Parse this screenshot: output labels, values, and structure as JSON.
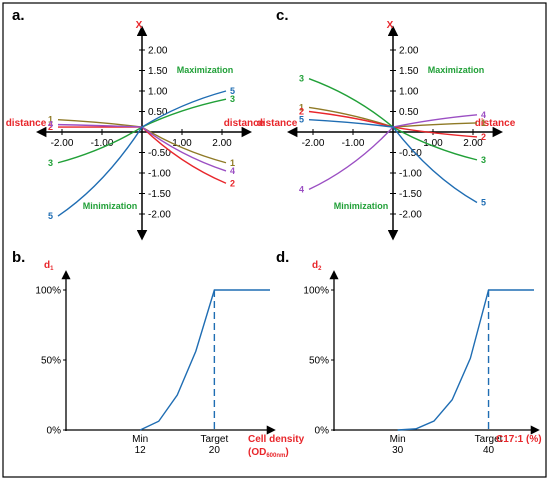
{
  "colors": {
    "red": "#e8262b",
    "green": "#21a038",
    "blue": "#1f6db3",
    "brown": "#8f7a26",
    "purple": "#9b4fc3",
    "black": "#000000"
  },
  "chart_data": [
    {
      "panel": "a.",
      "type": "line",
      "xlabel_left": "distance",
      "xlabel_right": "distance",
      "ylabel": "X",
      "xticks": [
        "-2.00",
        "-1.00",
        "1.00",
        "2.00"
      ],
      "yticks": [
        "2.00",
        "1.50",
        "1.00",
        "0.50",
        "-0.50",
        "-1.00",
        "-1.50",
        "-2.00"
      ],
      "xlim": [
        -2.3,
        2.5
      ],
      "ylim": [
        -2.4,
        2.4
      ],
      "annotations": {
        "top": "Maximization",
        "bottom": "Minimization"
      },
      "series": [
        {
          "name": "1",
          "color": "brown",
          "points": [
            [
              -2.1,
              0.3
            ],
            [
              0,
              0.12
            ],
            [
              2.1,
              -0.75
            ]
          ]
        },
        {
          "name": "2",
          "color": "red",
          "points": [
            [
              -2.1,
              0.12
            ],
            [
              0,
              0.12
            ],
            [
              2.1,
              -1.25
            ]
          ]
        },
        {
          "name": "3",
          "color": "green",
          "points": [
            [
              -2.1,
              -0.75
            ],
            [
              0,
              0.12
            ],
            [
              2.1,
              0.8
            ]
          ]
        },
        {
          "name": "4",
          "color": "purple",
          "points": [
            [
              -2.1,
              0.18
            ],
            [
              0,
              0.12
            ],
            [
              2.1,
              -0.95
            ]
          ]
        },
        {
          "name": "5",
          "color": "blue",
          "points": [
            [
              -2.1,
              -2.05
            ],
            [
              0,
              0.12
            ],
            [
              2.1,
              1.0
            ]
          ]
        }
      ]
    },
    {
      "panel": "c.",
      "type": "line",
      "xlabel_left": "distance",
      "xlabel_right": "distance",
      "ylabel": "X",
      "xticks": [
        "-2.00",
        "-1.00",
        "1.00",
        "2.00"
      ],
      "yticks": [
        "2.00",
        "1.50",
        "1.00",
        "0.50",
        "-0.50",
        "-1.00",
        "-1.50",
        "-2.00"
      ],
      "xlim": [
        -2.3,
        2.5
      ],
      "ylim": [
        -2.4,
        2.4
      ],
      "annotations": {
        "top": "Maximization",
        "bottom": "Minimization"
      },
      "series": [
        {
          "name": "1",
          "color": "brown",
          "points": [
            [
              -2.1,
              0.6
            ],
            [
              0,
              0.12
            ],
            [
              2.1,
              0.22
            ]
          ]
        },
        {
          "name": "2",
          "color": "red",
          "points": [
            [
              -2.1,
              0.5
            ],
            [
              0,
              0.12
            ],
            [
              2.1,
              -0.12
            ]
          ]
        },
        {
          "name": "3",
          "color": "green",
          "points": [
            [
              -2.1,
              1.3
            ],
            [
              0,
              0.12
            ],
            [
              2.1,
              -0.68
            ]
          ]
        },
        {
          "name": "4",
          "color": "purple",
          "points": [
            [
              -2.1,
              -1.4
            ],
            [
              0,
              0.12
            ],
            [
              2.1,
              0.42
            ]
          ]
        },
        {
          "name": "5",
          "color": "blue",
          "points": [
            [
              -2.1,
              0.3
            ],
            [
              0,
              0.12
            ],
            [
              2.1,
              -1.72
            ]
          ]
        }
      ]
    },
    {
      "panel": "b.",
      "type": "line",
      "ylabel": "d",
      "ylabel_sub": "1",
      "xlabel": "Cell density",
      "xlabel_line2": "(OD",
      "xlabel_sub": "600nm",
      "xlabel_close": ")",
      "yticks": [
        "100%",
        "50%",
        "0%"
      ],
      "categories": [
        {
          "label": "Min",
          "value": "12",
          "x": 12
        },
        {
          "label": "Target",
          "value": "20",
          "x": 20
        }
      ],
      "xlim": [
        4,
        26
      ],
      "ylim": [
        0,
        100
      ],
      "series": [
        {
          "name": "",
          "color": "blue",
          "points": [
            [
              12,
              0
            ],
            [
              14,
              6.25
            ],
            [
              16,
              25
            ],
            [
              18,
              56.25
            ],
            [
              20,
              100
            ],
            [
              26,
              100
            ]
          ]
        }
      ]
    },
    {
      "panel": "d.",
      "type": "line",
      "ylabel": "d",
      "ylabel_sub": "2",
      "xlabel": "C17:1 (%)",
      "yticks": [
        "100%",
        "50%",
        "0%"
      ],
      "categories": [
        {
          "label": "Min",
          "value": "30",
          "x": 30
        },
        {
          "label": "Target",
          "value": "40",
          "x": 40
        }
      ],
      "xlim": [
        23,
        45
      ],
      "ylim": [
        0,
        100
      ],
      "series": [
        {
          "name": "",
          "color": "blue",
          "points": [
            [
              30,
              0
            ],
            [
              32,
              0.8
            ],
            [
              34,
              6.4
            ],
            [
              36,
              21.6
            ],
            [
              38,
              51.2
            ],
            [
              40,
              100
            ],
            [
              45,
              100
            ]
          ]
        }
      ]
    }
  ]
}
